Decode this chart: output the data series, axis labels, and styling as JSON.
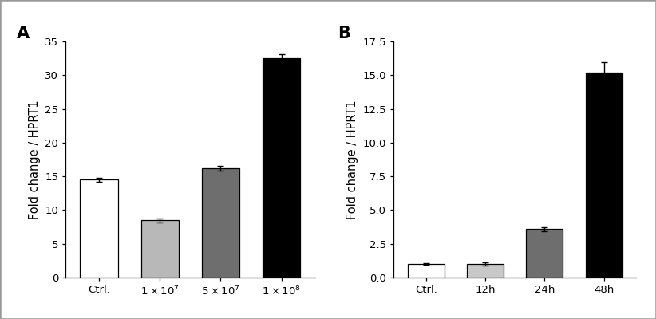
{
  "panel_A": {
    "label": "A",
    "categories_display": [
      "Ctrl.",
      "1x10$^7$",
      "5x10$^7$",
      "1x10$^8$"
    ],
    "tick_labels": [
      "Ctrl.",
      "$1\\times10^{7}$",
      "$5\\times10^{7}$",
      "$1\\times10^{8}$"
    ],
    "values": [
      14.5,
      8.5,
      16.2,
      32.5
    ],
    "errors": [
      0.3,
      0.3,
      0.4,
      0.6
    ],
    "bar_colors": [
      "white",
      "#b8b8b8",
      "#6e6e6e",
      "#000000"
    ],
    "bar_edgecolors": [
      "black",
      "black",
      "black",
      "black"
    ],
    "ylabel": "Fold change / HPRT1",
    "ylim": [
      0,
      35
    ],
    "yticks": [
      0,
      5,
      10,
      15,
      20,
      25,
      30,
      35
    ]
  },
  "panel_B": {
    "label": "B",
    "categories_display": [
      "Ctrl.",
      "12h",
      "24h",
      "48h"
    ],
    "tick_labels": [
      "Ctrl.",
      "12h",
      "24h",
      "48h"
    ],
    "values": [
      1.0,
      1.0,
      3.6,
      15.2
    ],
    "errors": [
      0.07,
      0.1,
      0.15,
      0.75
    ],
    "bar_colors": [
      "white",
      "#c8c8c8",
      "#6e6e6e",
      "#000000"
    ],
    "bar_edgecolors": [
      "black",
      "black",
      "black",
      "black"
    ],
    "ylabel": "Fold change / HPRT1",
    "ylim": [
      0,
      17.5
    ],
    "yticks": [
      0.0,
      2.5,
      5.0,
      7.5,
      10.0,
      12.5,
      15.0,
      17.5
    ]
  },
  "figure_background": "white",
  "border_color": "#999999",
  "label_fontsize": 15,
  "tick_fontsize": 9.5,
  "ylabel_fontsize": 10.5,
  "bar_width": 0.62
}
